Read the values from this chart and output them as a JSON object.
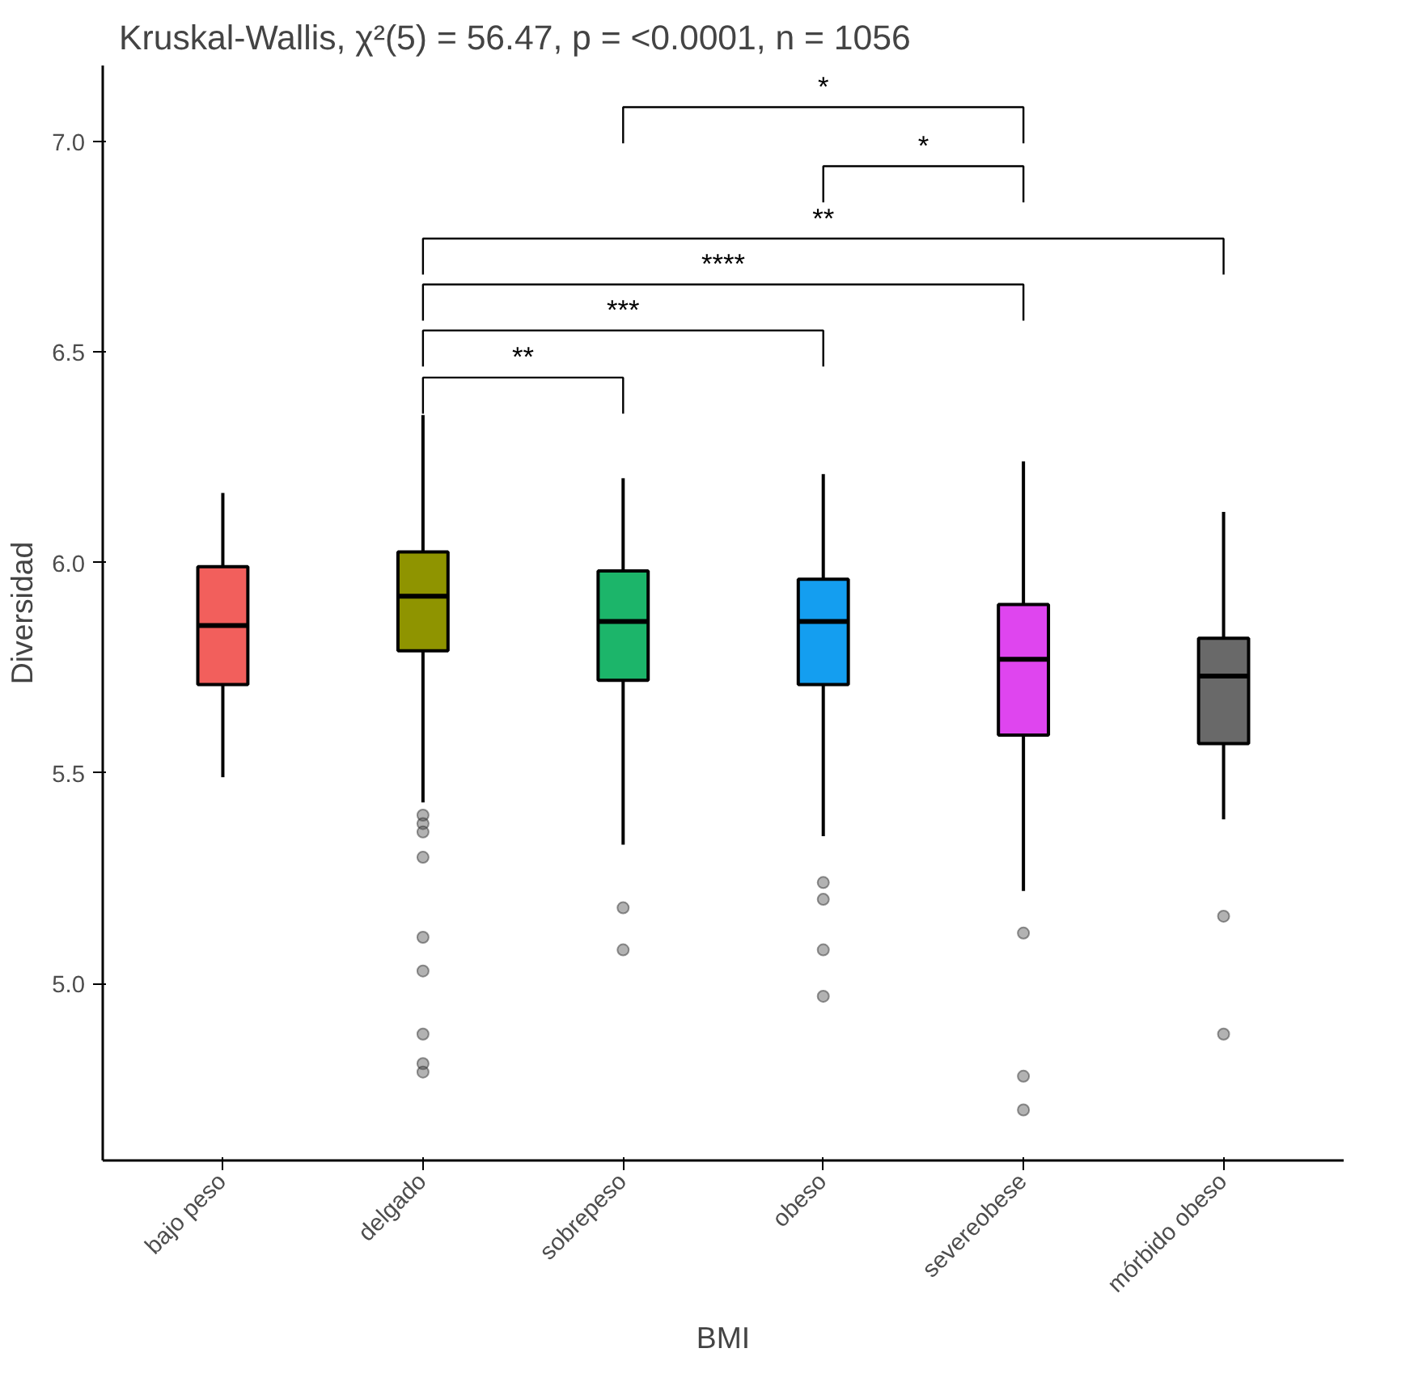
{
  "chart_data": {
    "type": "box",
    "title": "Kruskal-Wallis, χ²(5) = 56.47, p = <0.0001, n = 1056",
    "xlabel": "BMI",
    "ylabel": "Diversidad",
    "categories": [
      "bajo peso",
      "delgado",
      "sobrepeso",
      "obeso",
      "severeobese",
      "mórbido obeso"
    ],
    "colors": [
      "#f25f5c",
      "#8f9400",
      "#1cb56a",
      "#149ef0",
      "#df45ef",
      "#696969"
    ],
    "boxes": [
      {
        "low": 5.49,
        "q1": 5.71,
        "median": 5.85,
        "q3": 5.99,
        "high": 6.165
      },
      {
        "low": 5.43,
        "q1": 5.79,
        "median": 5.92,
        "q3": 6.025,
        "high": 6.35,
        "outliers": [
          5.4,
          5.38,
          5.36,
          5.3,
          5.11,
          5.03,
          4.88,
          4.81,
          4.79
        ]
      },
      {
        "low": 5.33,
        "q1": 5.72,
        "median": 5.86,
        "q3": 5.98,
        "high": 6.2,
        "outliers": [
          5.18,
          5.08
        ]
      },
      {
        "low": 5.35,
        "q1": 5.71,
        "median": 5.86,
        "q3": 5.96,
        "high": 6.21,
        "outliers": [
          5.24,
          5.2,
          5.08,
          4.97
        ]
      },
      {
        "low": 5.22,
        "q1": 5.59,
        "median": 5.77,
        "q3": 5.9,
        "high": 6.24,
        "outliers": [
          5.12,
          4.78,
          4.7
        ]
      },
      {
        "low": 5.39,
        "q1": 5.57,
        "median": 5.73,
        "q3": 5.82,
        "high": 6.12,
        "outliers": [
          5.16,
          4.88
        ]
      }
    ],
    "ylim": [
      4.58,
      7.18
    ],
    "yticks": [
      {
        "value": 5,
        "label": "5.0"
      },
      {
        "value": 5.5,
        "label": "5.5"
      },
      {
        "value": 6,
        "label": "6.0"
      },
      {
        "value": 6.5,
        "label": "6.5"
      },
      {
        "value": 7,
        "label": "7.0"
      }
    ],
    "grid": false,
    "annotations": [
      "*",
      "*",
      "**",
      "****",
      "***",
      "**"
    ]
  }
}
